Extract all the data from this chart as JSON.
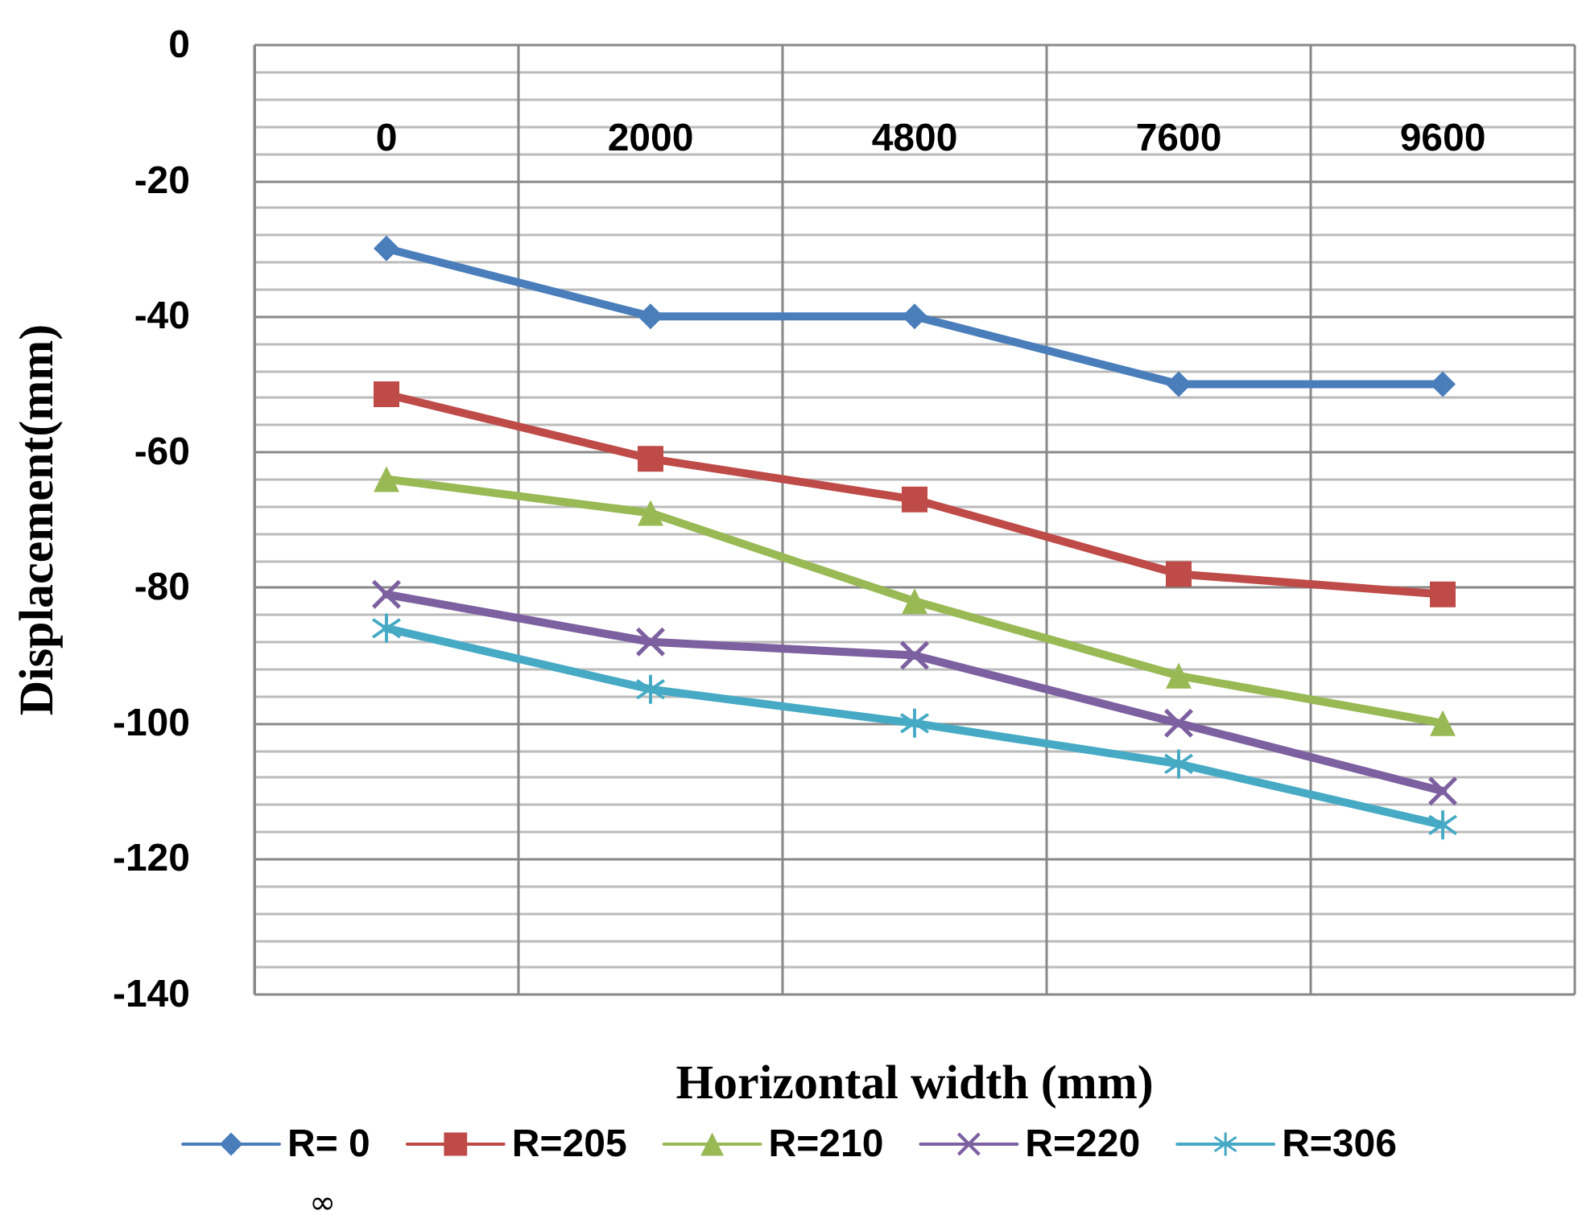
{
  "chart_data": {
    "type": "line",
    "xlabel": "Horizontal width (mm)",
    "ylabel": "Displacement(mm)",
    "categories": [
      "0",
      "2000",
      "4800",
      "7600",
      "9600"
    ],
    "series": [
      {
        "name": "R= 0",
        "color": "#4a7ebb",
        "marker": "diamond",
        "values": [
          -30,
          -40,
          -40,
          -50,
          -50
        ]
      },
      {
        "name": "R=205",
        "color": "#be4b48",
        "marker": "square",
        "values": [
          -51.5,
          -61,
          -67,
          -78,
          -81
        ]
      },
      {
        "name": "R=210",
        "color": "#98b954",
        "marker": "triangle",
        "values": [
          -64,
          -69,
          -82,
          -93,
          -100
        ]
      },
      {
        "name": "R=220",
        "color": "#7d60a0",
        "marker": "cross",
        "values": [
          -81,
          -88,
          -90,
          -100,
          -110
        ]
      },
      {
        "name": "R=306",
        "color": "#46aac5",
        "marker": "star",
        "values": [
          -86,
          -95,
          -100,
          -106,
          -115
        ]
      }
    ],
    "ylim": [
      -140,
      0
    ],
    "yticks": [
      0,
      -20,
      -40,
      -60,
      -80,
      -100,
      -120,
      -140
    ],
    "grid": true,
    "legend": "bottom",
    "annotations": [
      "∞"
    ]
  }
}
